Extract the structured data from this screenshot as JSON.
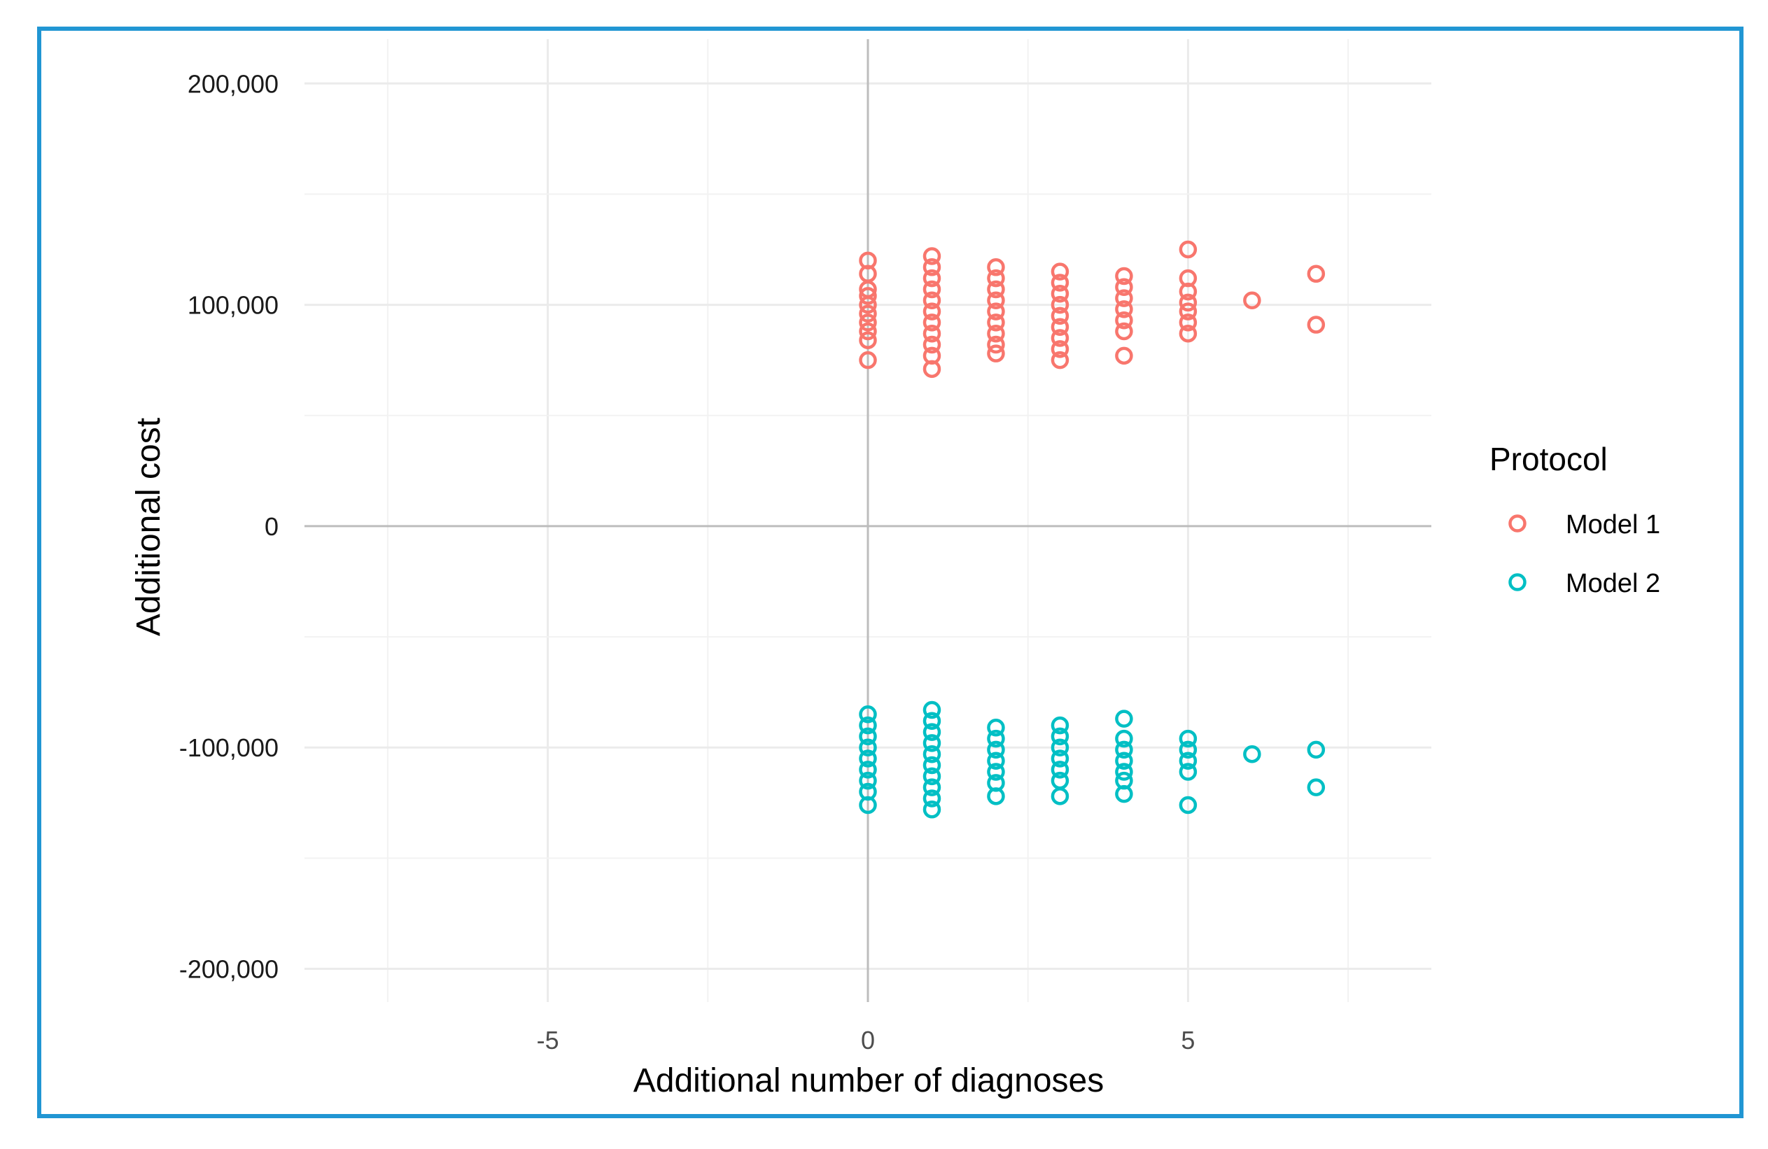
{
  "chart_data": {
    "type": "scatter",
    "title": "",
    "xlabel": "Additional number of diagnoses",
    "ylabel": "Additional cost",
    "xlim": [
      -8.8,
      8.8
    ],
    "ylim": [
      -215000,
      220000
    ],
    "x_ticks": [
      -5,
      0,
      5
    ],
    "x_tick_labels": [
      "-5",
      "0",
      "5"
    ],
    "y_ticks": [
      200000,
      100000,
      0,
      -100000,
      -200000
    ],
    "y_tick_labels": [
      "200,000",
      "100,000",
      "0",
      "-100,000",
      "-200,000"
    ],
    "grid": true,
    "legend": {
      "title": "Protocol",
      "position": "right"
    },
    "series": [
      {
        "name": "Model 1",
        "color": "#f8766d",
        "marker": "open-circle",
        "points": [
          {
            "x": 0,
            "y": 120000
          },
          {
            "x": 0,
            "y": 114000
          },
          {
            "x": 0,
            "y": 107000
          },
          {
            "x": 0,
            "y": 104000
          },
          {
            "x": 0,
            "y": 100000
          },
          {
            "x": 0,
            "y": 96000
          },
          {
            "x": 0,
            "y": 92000
          },
          {
            "x": 0,
            "y": 88000
          },
          {
            "x": 0,
            "y": 84000
          },
          {
            "x": 0,
            "y": 75000
          },
          {
            "x": 1,
            "y": 122000
          },
          {
            "x": 1,
            "y": 117000
          },
          {
            "x": 1,
            "y": 112000
          },
          {
            "x": 1,
            "y": 107000
          },
          {
            "x": 1,
            "y": 102000
          },
          {
            "x": 1,
            "y": 97000
          },
          {
            "x": 1,
            "y": 92000
          },
          {
            "x": 1,
            "y": 87000
          },
          {
            "x": 1,
            "y": 82000
          },
          {
            "x": 1,
            "y": 77000
          },
          {
            "x": 1,
            "y": 71000
          },
          {
            "x": 2,
            "y": 117000
          },
          {
            "x": 2,
            "y": 112000
          },
          {
            "x": 2,
            "y": 107000
          },
          {
            "x": 2,
            "y": 102000
          },
          {
            "x": 2,
            "y": 97000
          },
          {
            "x": 2,
            "y": 92000
          },
          {
            "x": 2,
            "y": 87000
          },
          {
            "x": 2,
            "y": 82000
          },
          {
            "x": 2,
            "y": 78000
          },
          {
            "x": 3,
            "y": 115000
          },
          {
            "x": 3,
            "y": 110000
          },
          {
            "x": 3,
            "y": 105000
          },
          {
            "x": 3,
            "y": 100000
          },
          {
            "x": 3,
            "y": 95000
          },
          {
            "x": 3,
            "y": 90000
          },
          {
            "x": 3,
            "y": 85000
          },
          {
            "x": 3,
            "y": 80000
          },
          {
            "x": 3,
            "y": 75000
          },
          {
            "x": 4,
            "y": 113000
          },
          {
            "x": 4,
            "y": 108000
          },
          {
            "x": 4,
            "y": 103000
          },
          {
            "x": 4,
            "y": 98000
          },
          {
            "x": 4,
            "y": 93000
          },
          {
            "x": 4,
            "y": 88000
          },
          {
            "x": 4,
            "y": 77000
          },
          {
            "x": 5,
            "y": 125000
          },
          {
            "x": 5,
            "y": 112000
          },
          {
            "x": 5,
            "y": 106000
          },
          {
            "x": 5,
            "y": 101000
          },
          {
            "x": 5,
            "y": 97000
          },
          {
            "x": 5,
            "y": 92000
          },
          {
            "x": 5,
            "y": 87000
          },
          {
            "x": 6,
            "y": 102000
          },
          {
            "x": 7,
            "y": 114000
          },
          {
            "x": 7,
            "y": 91000
          }
        ]
      },
      {
        "name": "Model 2",
        "color": "#00bfc4",
        "marker": "open-circle",
        "points": [
          {
            "x": 0,
            "y": -85000
          },
          {
            "x": 0,
            "y": -90000
          },
          {
            "x": 0,
            "y": -95000
          },
          {
            "x": 0,
            "y": -100000
          },
          {
            "x": 0,
            "y": -105000
          },
          {
            "x": 0,
            "y": -110000
          },
          {
            "x": 0,
            "y": -115000
          },
          {
            "x": 0,
            "y": -120000
          },
          {
            "x": 0,
            "y": -126000
          },
          {
            "x": 1,
            "y": -83000
          },
          {
            "x": 1,
            "y": -88000
          },
          {
            "x": 1,
            "y": -93000
          },
          {
            "x": 1,
            "y": -98000
          },
          {
            "x": 1,
            "y": -103000
          },
          {
            "x": 1,
            "y": -108000
          },
          {
            "x": 1,
            "y": -113000
          },
          {
            "x": 1,
            "y": -118000
          },
          {
            "x": 1,
            "y": -123000
          },
          {
            "x": 1,
            "y": -128000
          },
          {
            "x": 2,
            "y": -91000
          },
          {
            "x": 2,
            "y": -96000
          },
          {
            "x": 2,
            "y": -101000
          },
          {
            "x": 2,
            "y": -106000
          },
          {
            "x": 2,
            "y": -111000
          },
          {
            "x": 2,
            "y": -116000
          },
          {
            "x": 2,
            "y": -122000
          },
          {
            "x": 3,
            "y": -90000
          },
          {
            "x": 3,
            "y": -95000
          },
          {
            "x": 3,
            "y": -100000
          },
          {
            "x": 3,
            "y": -105000
          },
          {
            "x": 3,
            "y": -110000
          },
          {
            "x": 3,
            "y": -115000
          },
          {
            "x": 3,
            "y": -122000
          },
          {
            "x": 4,
            "y": -87000
          },
          {
            "x": 4,
            "y": -96000
          },
          {
            "x": 4,
            "y": -101000
          },
          {
            "x": 4,
            "y": -106000
          },
          {
            "x": 4,
            "y": -111000
          },
          {
            "x": 4,
            "y": -115000
          },
          {
            "x": 4,
            "y": -121000
          },
          {
            "x": 5,
            "y": -96000
          },
          {
            "x": 5,
            "y": -101000
          },
          {
            "x": 5,
            "y": -106000
          },
          {
            "x": 5,
            "y": -111000
          },
          {
            "x": 5,
            "y": -126000
          },
          {
            "x": 6,
            "y": -103000
          },
          {
            "x": 7,
            "y": -101000
          },
          {
            "x": 7,
            "y": -118000
          }
        ]
      }
    ]
  }
}
